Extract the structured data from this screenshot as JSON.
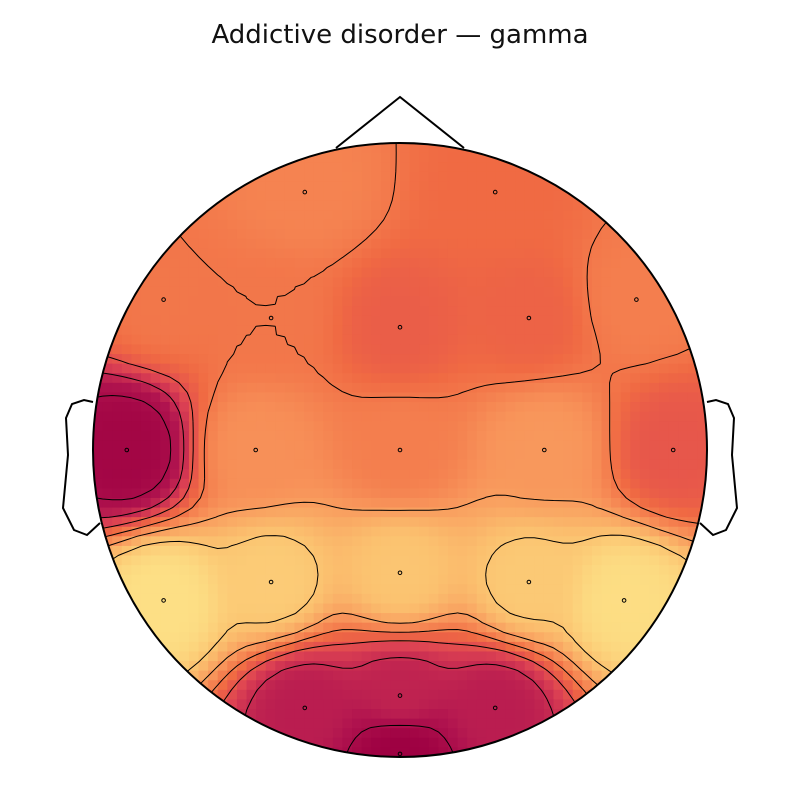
{
  "chart_data": {
    "type": "heatmap",
    "title": "Addictive disorder — gamma",
    "colormap": "spectral-warm",
    "colors": [
      "#fde68a",
      "#fbc16f",
      "#f8945a",
      "#f06a43",
      "#dd4253",
      "#b1144f",
      "#9e0142"
    ],
    "relative_value_range": [
      0,
      1
    ],
    "sensors": [
      {
        "x": -0.31,
        "y": 0.84,
        "value": 0.4
      },
      {
        "x": 0.31,
        "y": 0.84,
        "value": 0.5
      },
      {
        "x": -0.77,
        "y": 0.49,
        "value": 0.45
      },
      {
        "x": -0.42,
        "y": 0.43,
        "value": 0.45
      },
      {
        "x": 0.0,
        "y": 0.4,
        "value": 0.55
      },
      {
        "x": 0.42,
        "y": 0.43,
        "value": 0.53
      },
      {
        "x": 0.77,
        "y": 0.49,
        "value": 0.42
      },
      {
        "x": -0.89,
        "y": 0.0,
        "value": 0.96
      },
      {
        "x": -0.47,
        "y": 0.0,
        "value": 0.35
      },
      {
        "x": 0.0,
        "y": 0.0,
        "value": 0.42
      },
      {
        "x": 0.47,
        "y": 0.0,
        "value": 0.32
      },
      {
        "x": 0.89,
        "y": 0.0,
        "value": 0.58
      },
      {
        "x": -0.77,
        "y": -0.49,
        "value": 0.03
      },
      {
        "x": -0.42,
        "y": -0.43,
        "value": 0.12
      },
      {
        "x": 0.0,
        "y": -0.4,
        "value": 0.15
      },
      {
        "x": 0.42,
        "y": -0.43,
        "value": 0.13
      },
      {
        "x": 0.73,
        "y": -0.49,
        "value": 0.04
      },
      {
        "x": -0.31,
        "y": -0.84,
        "value": 0.8
      },
      {
        "x": 0.31,
        "y": -0.84,
        "value": 0.8
      },
      {
        "x": 0.0,
        "y": -0.99,
        "value": 1.0
      },
      {
        "x": 0.0,
        "y": -0.8,
        "value": 0.78
      }
    ]
  }
}
